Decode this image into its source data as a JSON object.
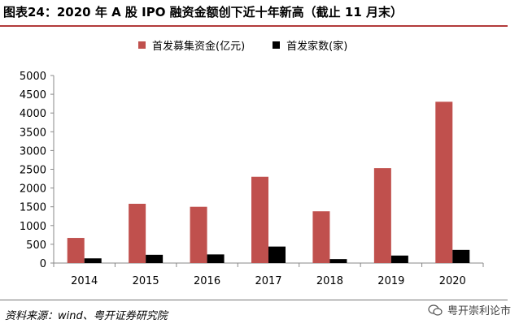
{
  "figure_title": "图表24：2020 年 A 股 IPO 融资金额创下近十年新高（截止 11 月末）",
  "source": "资料来源：wind、粤开证券研究院",
  "watermark": "粤开崇利论市",
  "colors": {
    "series1": "#c0504d",
    "series2": "#000000",
    "title_rule": "#b23a3a"
  },
  "chart_data": {
    "type": "bar",
    "title": "",
    "categories": [
      "2014",
      "2015",
      "2016",
      "2017",
      "2018",
      "2019",
      "2020"
    ],
    "series": [
      {
        "name": "首发募集资金(亿元)",
        "values": [
          670,
          1580,
          1500,
          2300,
          1380,
          2530,
          4300
        ]
      },
      {
        "name": "首发家数(家)",
        "values": [
          125,
          220,
          230,
          440,
          105,
          200,
          350
        ]
      }
    ],
    "ylim": [
      0,
      5000
    ],
    "yticks": [
      0,
      500,
      1000,
      1500,
      2000,
      2500,
      3000,
      3500,
      4000,
      4500,
      5000
    ],
    "xlabel": "",
    "ylabel": "",
    "grid": false,
    "legend_position": "top"
  }
}
